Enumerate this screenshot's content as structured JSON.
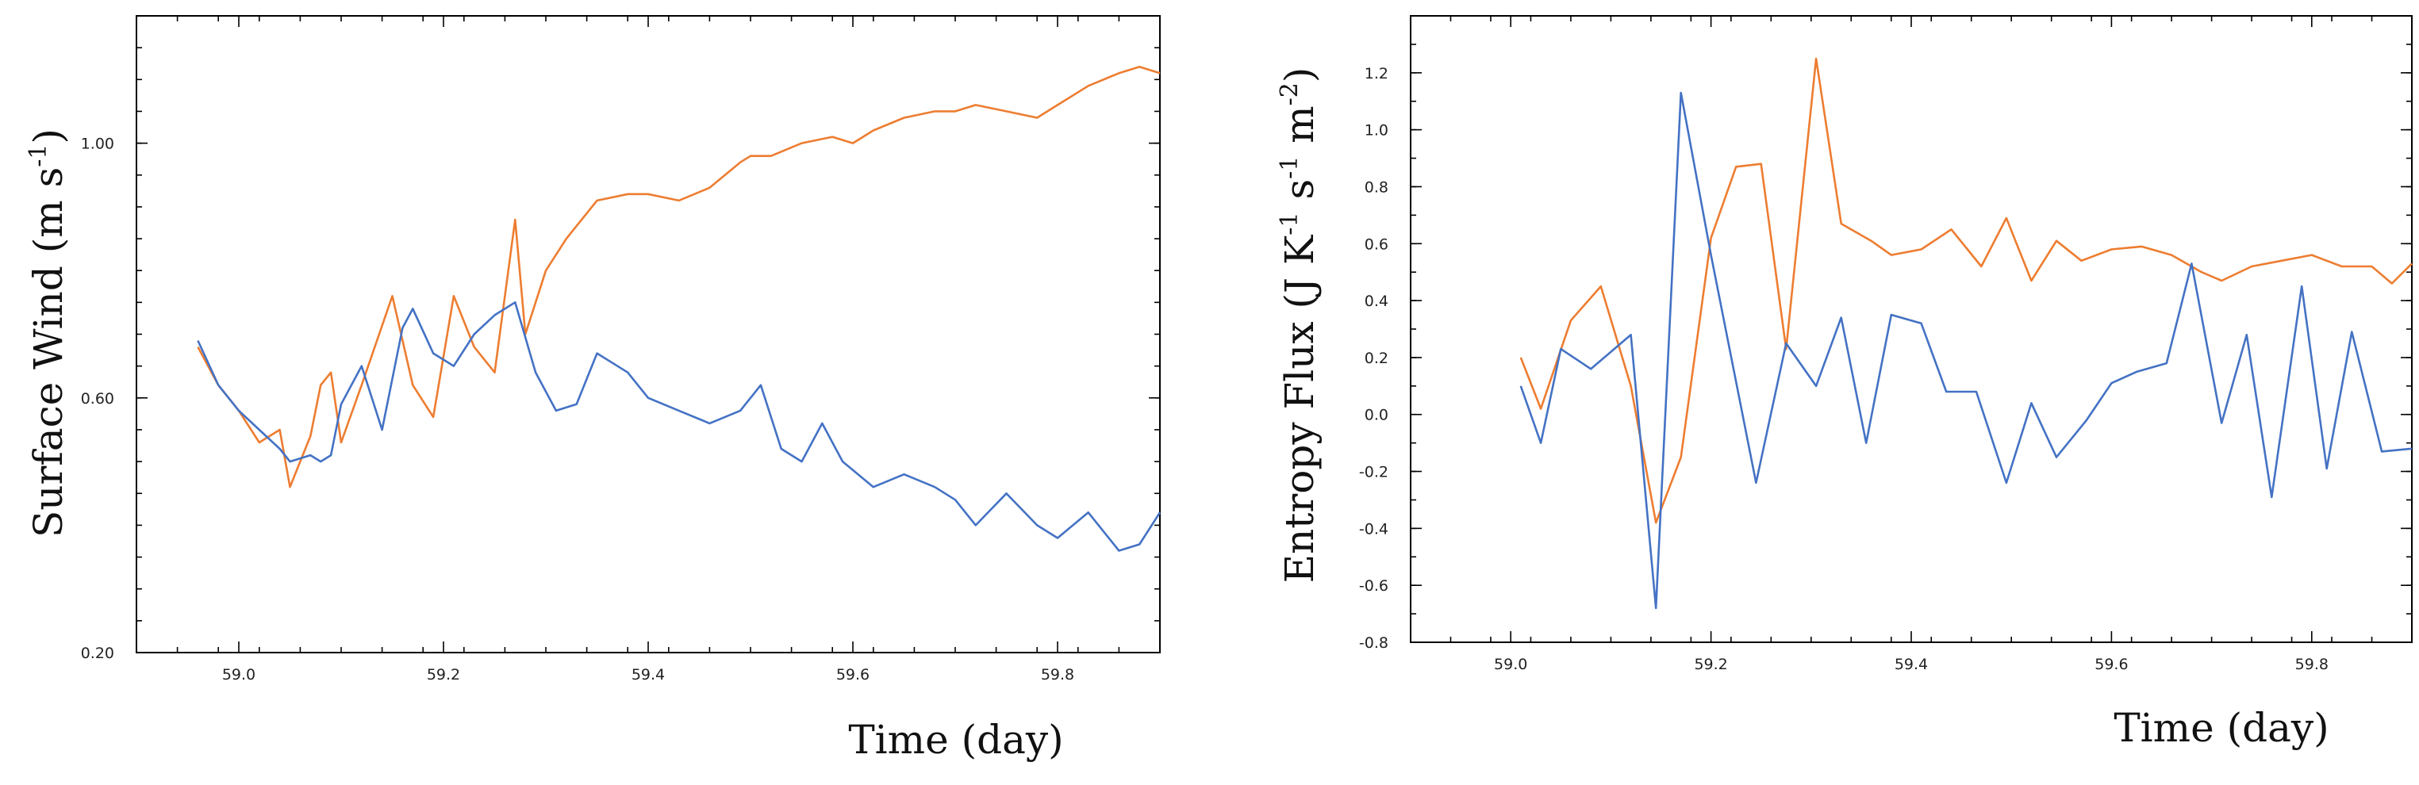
{
  "colors": {
    "series_blue": "#4472C4",
    "series_orange": "#ED7D31"
  },
  "chart_data": [
    {
      "type": "line",
      "title": "",
      "xlabel": "Time (day)",
      "ylabel_parts": [
        "Surface Wind (m s",
        "-1",
        ")"
      ],
      "xlim": [
        58.9,
        59.9
      ],
      "ylim": [
        0.2,
        1.2
      ],
      "xticks": [
        59.0,
        59.2,
        59.4,
        59.6,
        59.8
      ],
      "xtick_labels": [
        "59.0",
        "59.2",
        "59.4",
        "59.6",
        "59.8"
      ],
      "yticks": [
        0.2,
        0.6,
        1.0
      ],
      "ytick_labels": [
        "0.20",
        "0.60",
        "1.00"
      ],
      "series": [
        {
          "name": "orange",
          "color": "#ED7D31",
          "x": [
            58.96,
            58.98,
            59.0,
            59.02,
            59.04,
            59.05,
            59.07,
            59.08,
            59.09,
            59.1,
            59.12,
            59.15,
            59.17,
            59.19,
            59.21,
            59.23,
            59.25,
            59.27,
            59.28,
            59.3,
            59.32,
            59.35,
            59.38,
            59.4,
            59.43,
            59.46,
            59.49,
            59.5,
            59.52,
            59.55,
            59.58,
            59.6,
            59.62,
            59.65,
            59.68,
            59.7,
            59.72,
            59.75,
            59.78,
            59.8,
            59.83,
            59.86,
            59.88,
            59.9
          ],
          "y": [
            0.68,
            0.62,
            0.58,
            0.53,
            0.55,
            0.46,
            0.54,
            0.62,
            0.64,
            0.53,
            0.62,
            0.76,
            0.62,
            0.57,
            0.76,
            0.68,
            0.64,
            0.88,
            0.7,
            0.8,
            0.85,
            0.91,
            0.92,
            0.92,
            0.91,
            0.93,
            0.97,
            0.98,
            0.98,
            1.0,
            1.01,
            1.0,
            1.02,
            1.04,
            1.05,
            1.05,
            1.06,
            1.05,
            1.04,
            1.06,
            1.09,
            1.11,
            1.12,
            1.11
          ]
        },
        {
          "name": "blue",
          "color": "#4472C4",
          "x": [
            58.96,
            58.98,
            59.0,
            59.02,
            59.04,
            59.05,
            59.07,
            59.08,
            59.09,
            59.1,
            59.12,
            59.14,
            59.16,
            59.17,
            59.19,
            59.21,
            59.23,
            59.25,
            59.27,
            59.29,
            59.31,
            59.33,
            59.35,
            59.38,
            59.4,
            59.43,
            59.46,
            59.49,
            59.51,
            59.53,
            59.55,
            59.57,
            59.59,
            59.62,
            59.65,
            59.68,
            59.7,
            59.72,
            59.75,
            59.78,
            59.8,
            59.83,
            59.86,
            59.88,
            59.9
          ],
          "y": [
            0.69,
            0.62,
            0.58,
            0.55,
            0.52,
            0.5,
            0.51,
            0.5,
            0.51,
            0.59,
            0.65,
            0.55,
            0.71,
            0.74,
            0.67,
            0.65,
            0.7,
            0.73,
            0.75,
            0.64,
            0.58,
            0.59,
            0.67,
            0.64,
            0.6,
            0.58,
            0.56,
            0.58,
            0.62,
            0.52,
            0.5,
            0.56,
            0.5,
            0.46,
            0.48,
            0.46,
            0.44,
            0.4,
            0.45,
            0.4,
            0.38,
            0.42,
            0.36,
            0.37,
            0.42
          ]
        }
      ]
    },
    {
      "type": "line",
      "title": "",
      "xlabel": "Time (day)",
      "ylabel_parts": [
        "Entropy Flux (J K",
        "-1",
        " s",
        "-1",
        " m",
        "-2",
        ")"
      ],
      "xlim": [
        58.9,
        59.9
      ],
      "ylim": [
        -0.8,
        1.4
      ],
      "xticks": [
        59.0,
        59.2,
        59.4,
        59.6,
        59.8
      ],
      "xtick_labels": [
        "59.0",
        "59.2",
        "59.4",
        "59.6",
        "59.8"
      ],
      "yticks": [
        -0.8,
        -0.6,
        -0.4,
        -0.2,
        0.0,
        0.2,
        0.4,
        0.6,
        0.8,
        1.0,
        1.2
      ],
      "ytick_labels": [
        "-0.8",
        "-0.6",
        "-0.4",
        "-0.2",
        "0.0",
        "0.2",
        "0.4",
        "0.6",
        "0.8",
        "1.0",
        "1.2"
      ],
      "series": [
        {
          "name": "orange",
          "color": "#ED7D31",
          "x": [
            59.01,
            59.03,
            59.06,
            59.09,
            59.12,
            59.145,
            59.17,
            59.2,
            59.225,
            59.25,
            59.275,
            59.305,
            59.33,
            59.36,
            59.38,
            59.41,
            59.44,
            59.47,
            59.495,
            59.52,
            59.545,
            59.57,
            59.6,
            59.63,
            59.66,
            59.69,
            59.71,
            59.74,
            59.77,
            59.8,
            59.83,
            59.86,
            59.88,
            59.9
          ],
          "y": [
            0.2,
            0.02,
            0.33,
            0.45,
            0.1,
            -0.38,
            -0.15,
            0.62,
            0.87,
            0.88,
            0.23,
            1.25,
            0.67,
            0.61,
            0.56,
            0.58,
            0.65,
            0.52,
            0.69,
            0.47,
            0.61,
            0.54,
            0.58,
            0.59,
            0.56,
            0.5,
            0.47,
            0.52,
            0.54,
            0.56,
            0.52,
            0.52,
            0.46,
            0.53
          ]
        },
        {
          "name": "blue",
          "color": "#4472C4",
          "x": [
            59.01,
            59.03,
            59.05,
            59.08,
            59.12,
            59.145,
            59.17,
            59.2,
            59.245,
            59.275,
            59.305,
            59.33,
            59.355,
            59.38,
            59.41,
            59.435,
            59.465,
            59.495,
            59.52,
            59.545,
            59.575,
            59.6,
            59.625,
            59.655,
            59.68,
            59.71,
            59.735,
            59.76,
            59.79,
            59.815,
            59.84,
            59.87,
            59.9
          ],
          "y": [
            0.1,
            -0.1,
            0.23,
            0.16,
            0.28,
            -0.68,
            1.13,
            0.56,
            -0.24,
            0.25,
            0.1,
            0.34,
            -0.1,
            0.35,
            0.32,
            0.08,
            0.08,
            -0.24,
            0.04,
            -0.15,
            -0.02,
            0.11,
            0.15,
            0.18,
            0.53,
            -0.03,
            0.28,
            -0.29,
            0.45,
            -0.19,
            0.29,
            -0.13,
            -0.12
          ]
        }
      ]
    }
  ]
}
